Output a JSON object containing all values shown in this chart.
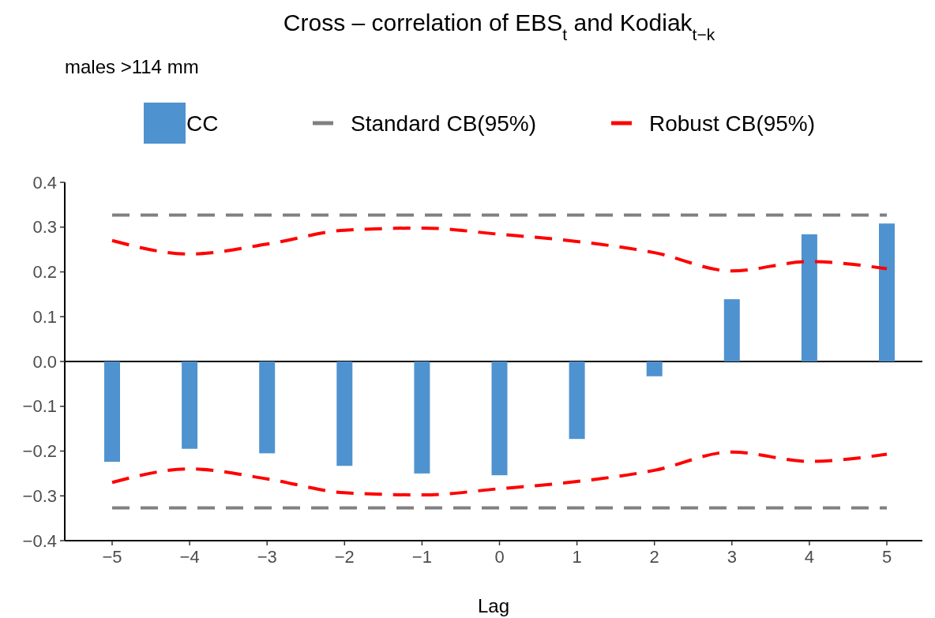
{
  "chart_data": {
    "type": "bar",
    "title": "Cross – correlation of EBS$_{t}$ and Kodiak$_{t−k}$",
    "subtitle": "males >114 mm",
    "xlabel": "Lag",
    "categories": [
      "−5",
      "−4",
      "−3",
      "−2",
      "−1",
      "0",
      "1",
      "2",
      "3",
      "4",
      "5"
    ],
    "series": [
      {
        "name": "CC",
        "color": "#4f92d0",
        "values": [
          -0.224,
          -0.195,
          -0.205,
          -0.233,
          -0.25,
          -0.254,
          -0.173,
          -0.033,
          0.139,
          0.284,
          0.308
        ]
      },
      {
        "name": "Standard CB(95%)",
        "type": "line",
        "color": "#808080",
        "line_style": "dashed",
        "values": [
          0.327,
          0.327,
          0.327,
          0.327,
          0.327,
          0.327,
          0.327,
          0.327,
          0.327,
          0.327,
          0.327
        ]
      },
      {
        "type": "line",
        "color": "#808080",
        "line_style": "dashed",
        "values": [
          -0.327,
          -0.327,
          -0.327,
          -0.327,
          -0.327,
          -0.327,
          -0.327,
          -0.327,
          -0.327,
          -0.327,
          -0.327
        ]
      },
      {
        "name": "Robust CB(95%)",
        "type": "line",
        "color": "#ff0000",
        "line_style": "dashed",
        "values": [
          0.27,
          0.24,
          0.262,
          0.293,
          0.298,
          0.284,
          0.268,
          0.243,
          0.202,
          0.223,
          0.207
        ]
      },
      {
        "type": "line",
        "color": "#ff0000",
        "line_style": "dashed",
        "values": [
          -0.27,
          -0.24,
          -0.262,
          -0.293,
          -0.298,
          -0.284,
          -0.268,
          -0.243,
          -0.202,
          -0.223,
          -0.207
        ]
      }
    ],
    "ylim": [
      -0.4,
      0.4
    ],
    "yticks": [
      {
        "value": -0.4,
        "label": "−0.4"
      },
      {
        "value": -0.3,
        "label": "−0.3"
      },
      {
        "value": -0.2,
        "label": "−0.2"
      },
      {
        "value": -0.1,
        "label": "−0.1"
      },
      {
        "value": 0,
        "label": "0.0"
      },
      {
        "value": 0.1,
        "label": "0.1"
      },
      {
        "value": 0.2,
        "label": "0.2"
      },
      {
        "value": 0.3,
        "label": "0.3"
      },
      {
        "value": 0.4,
        "label": "0.4"
      }
    ],
    "ref_lines": [
      {
        "axis": "y",
        "value": 0,
        "color": "#000000"
      }
    ],
    "grid": false,
    "legend": "top"
  }
}
